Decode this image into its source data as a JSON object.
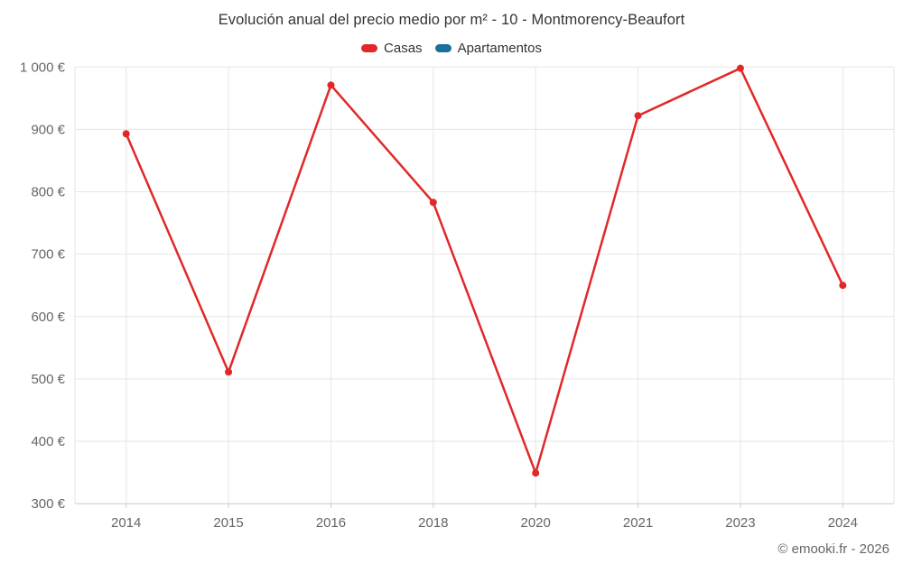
{
  "header": {
    "title": "Evolución anual del precio medio por m² - 10 - Montmorency-Beaufort"
  },
  "legend": {
    "items": [
      {
        "label": "Casas",
        "color": "#e12828"
      },
      {
        "label": "Apartamentos",
        "color": "#17709e"
      }
    ]
  },
  "footer": {
    "credit": "© emooki.fr - 2026"
  },
  "colors": {
    "grid": "#e6e6e6",
    "axis": "#cccccc",
    "tick_text": "#666666",
    "title_text": "#333333",
    "casas": "#e12828",
    "apartamentos": "#17709e"
  },
  "chart_data": {
    "type": "line",
    "title": "Evolución anual del precio medio por m² - 10 - Montmorency-Beaufort",
    "xlabel": "",
    "ylabel": "",
    "categories": [
      "2014",
      "2015",
      "2016",
      "2018",
      "2020",
      "2021",
      "2023",
      "2024"
    ],
    "series": [
      {
        "name": "Casas",
        "color": "#e12828",
        "values": [
          893,
          511,
          971,
          783,
          349,
          922,
          998,
          650
        ]
      },
      {
        "name": "Apartamentos",
        "color": "#17709e",
        "values": [
          null,
          null,
          null,
          null,
          null,
          null,
          null,
          null
        ]
      }
    ],
    "ylim": [
      300,
      1000
    ],
    "yticks": [
      {
        "value": 300,
        "label": "300 €"
      },
      {
        "value": 400,
        "label": "400 €"
      },
      {
        "value": 500,
        "label": "500 €"
      },
      {
        "value": 600,
        "label": "600 €"
      },
      {
        "value": 700,
        "label": "700 €"
      },
      {
        "value": 800,
        "label": "800 €"
      },
      {
        "value": 900,
        "label": "900 €"
      },
      {
        "value": 1000,
        "label": "1 000 €"
      }
    ],
    "grid": true,
    "legend_position": "top"
  }
}
